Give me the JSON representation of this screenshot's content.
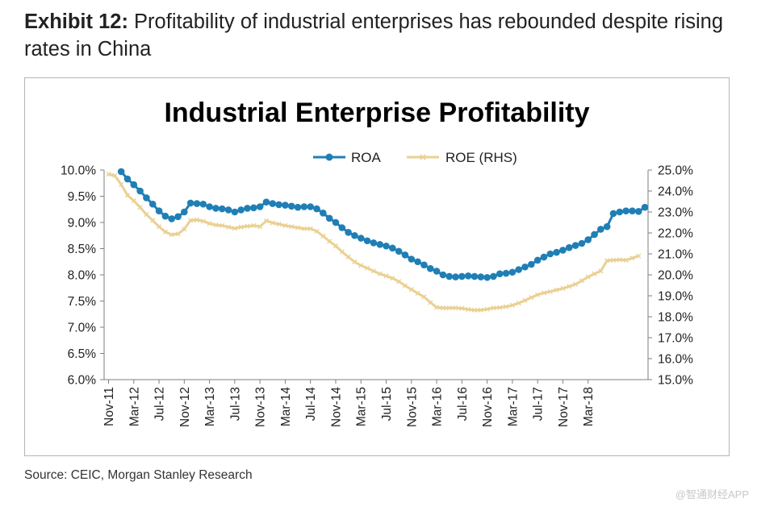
{
  "exhibit": {
    "label": "Exhibit 12:",
    "title": "Profitability of industrial enterprises has rebounded despite rising rates in China"
  },
  "source": "Source: CEIC, Morgan Stanley Research",
  "watermark": "@智通财经APP",
  "chart_data": {
    "type": "line",
    "title": "Industrial Enterprise Profitability",
    "legend_position": "top-center",
    "x_tick_labels": [
      "Nov-11",
      "Mar-12",
      "Jul-12",
      "Nov-12",
      "Mar-13",
      "Jul-13",
      "Nov-13",
      "Mar-14",
      "Jul-14",
      "Nov-14",
      "Mar-15",
      "Jul-15",
      "Nov-15",
      "Mar-16",
      "Jul-16",
      "Nov-16",
      "Mar-17",
      "Jul-17",
      "Nov-17",
      "Mar-18"
    ],
    "x_start": "Nov-11",
    "left_axis": {
      "min": 6.0,
      "max": 10.0,
      "step": 0.5,
      "tick_labels": [
        "6.0%",
        "6.5%",
        "7.0%",
        "7.5%",
        "8.0%",
        "8.5%",
        "9.0%",
        "9.5%",
        "10.0%"
      ]
    },
    "right_axis": {
      "min": 15.0,
      "max": 25.0,
      "step": 1.0,
      "tick_labels": [
        "15.0%",
        "16.0%",
        "17.0%",
        "18.0%",
        "19.0%",
        "20.0%",
        "21.0%",
        "22.0%",
        "23.0%",
        "24.0%",
        "25.0%"
      ]
    },
    "series": [
      {
        "name": "ROA",
        "axis": "left",
        "color": "#1f7fb5",
        "marker": "circle",
        "start_index": 2,
        "values": [
          9.97,
          9.83,
          9.72,
          9.6,
          9.47,
          9.35,
          9.22,
          9.12,
          9.07,
          9.11,
          9.2,
          9.37,
          9.36,
          9.35,
          9.3,
          9.27,
          9.26,
          9.24,
          9.2,
          9.24,
          9.27,
          9.28,
          9.3,
          9.39,
          9.36,
          9.34,
          9.33,
          9.31,
          9.29,
          9.3,
          9.3,
          9.26,
          9.18,
          9.08,
          9.0,
          8.9,
          8.81,
          8.75,
          8.7,
          8.65,
          8.61,
          8.58,
          8.55,
          8.51,
          8.45,
          8.38,
          8.3,
          8.25,
          8.19,
          8.12,
          8.07,
          8.0,
          7.97,
          7.96,
          7.97,
          7.98,
          7.97,
          7.96,
          7.95,
          7.97,
          8.02,
          8.03,
          8.05,
          8.1,
          8.15,
          8.2,
          8.28,
          8.34,
          8.4,
          8.43,
          8.47,
          8.52,
          8.56,
          8.6,
          8.67,
          8.77,
          8.87,
          8.92,
          9.17,
          9.2,
          9.22,
          9.22,
          9.21,
          9.29
        ]
      },
      {
        "name": "ROE (RHS)",
        "axis": "right",
        "color": "#ead092",
        "marker": "cross",
        "start_index": 0,
        "values": [
          24.8,
          24.74,
          24.31,
          23.8,
          23.54,
          23.22,
          22.88,
          22.6,
          22.3,
          22.05,
          21.92,
          21.95,
          22.18,
          22.6,
          22.62,
          22.56,
          22.45,
          22.38,
          22.35,
          22.28,
          22.22,
          22.28,
          22.32,
          22.35,
          22.3,
          22.58,
          22.48,
          22.42,
          22.35,
          22.3,
          22.25,
          22.2,
          22.2,
          22.08,
          21.85,
          21.6,
          21.38,
          21.1,
          20.85,
          20.62,
          20.45,
          20.32,
          20.18,
          20.05,
          19.95,
          19.84,
          19.68,
          19.48,
          19.3,
          19.12,
          18.95,
          18.68,
          18.45,
          18.42,
          18.42,
          18.42,
          18.4,
          18.35,
          18.32,
          18.32,
          18.36,
          18.42,
          18.44,
          18.48,
          18.55,
          18.65,
          18.78,
          18.92,
          19.05,
          19.14,
          19.2,
          19.28,
          19.35,
          19.45,
          19.55,
          19.72,
          19.9,
          20.05,
          20.18,
          20.68,
          20.7,
          20.72,
          20.7,
          20.8,
          20.9
        ]
      }
    ]
  }
}
